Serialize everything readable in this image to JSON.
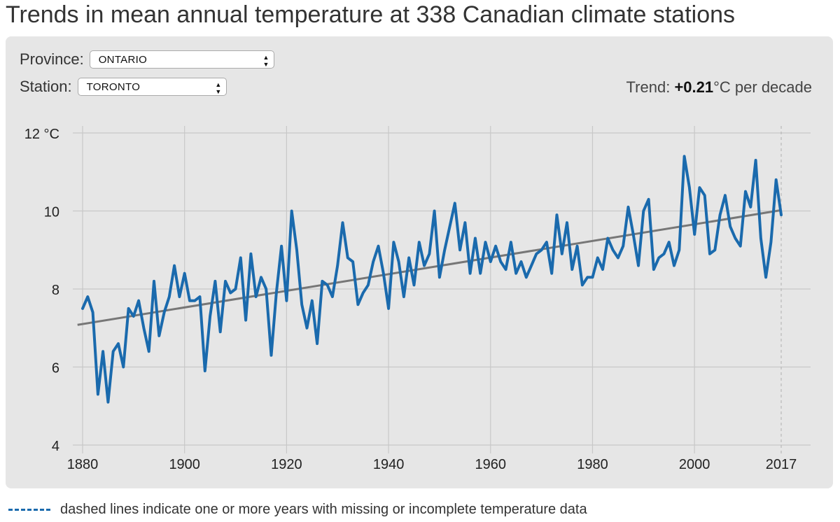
{
  "title": "Trends in mean annual temperature at 338 Canadian climate stations",
  "controls": {
    "province_label": "Province:",
    "province_value": "ONTARIO",
    "station_label": "Station:",
    "station_value": "TORONTO"
  },
  "trend": {
    "prefix": "Trend: ",
    "value": "+0.21",
    "suffix": "°C per decade"
  },
  "footnote": "dashed lines indicate one or more years with missing or incomplete temperature data",
  "colors": {
    "series": "#1a6aad",
    "trend": "#777777",
    "grid": "#c8c8c8",
    "panel": "#e6e6e6"
  },
  "chart_data": {
    "type": "line",
    "ylim": [
      4,
      12
    ],
    "xlim": [
      1880,
      2017
    ],
    "yticks": [
      4,
      6,
      8,
      10,
      12
    ],
    "ytick_labels": [
      "4",
      "6",
      "8",
      "10",
      "12 °C"
    ],
    "xticks": [
      1880,
      1900,
      1920,
      1940,
      1960,
      1980,
      2000,
      2017
    ],
    "xtick_labels": [
      "1880",
      "1900",
      "1920",
      "1940",
      "1960",
      "1980",
      "2000",
      "2017"
    ],
    "grid": true,
    "dashed_marker_year": 2017,
    "trend_line": {
      "x": [
        1879,
        2017
      ],
      "y": [
        7.08,
        10.02
      ]
    },
    "series": [
      {
        "x": [
          1880,
          1881,
          1882,
          1883,
          1884,
          1885,
          1886,
          1887,
          1888,
          1889,
          1890,
          1891,
          1892,
          1893,
          1894,
          1895,
          1896,
          1897,
          1898,
          1899,
          1900,
          1901,
          1902,
          1903,
          1904,
          1905,
          1906,
          1907,
          1908,
          1909,
          1910,
          1911,
          1912,
          1913,
          1914,
          1915,
          1916,
          1917,
          1918,
          1919,
          1920,
          1921,
          1922,
          1923,
          1924,
          1925,
          1926,
          1927,
          1928,
          1929,
          1930,
          1931,
          1932,
          1933,
          1934,
          1935,
          1936,
          1937,
          1938,
          1939,
          1940,
          1941,
          1942,
          1943,
          1944,
          1945,
          1946,
          1947,
          1948,
          1949,
          1950,
          1951,
          1952,
          1953,
          1954,
          1955,
          1956,
          1957,
          1958,
          1959,
          1960,
          1961,
          1962,
          1963,
          1964,
          1965,
          1966,
          1967,
          1968,
          1969,
          1970,
          1971,
          1972,
          1973,
          1974,
          1975,
          1976,
          1977,
          1978,
          1979,
          1980,
          1981,
          1982,
          1983,
          1984,
          1985,
          1986,
          1987,
          1988,
          1989,
          1990,
          1991,
          1992,
          1993,
          1994,
          1995,
          1996,
          1997,
          1998,
          1999,
          2000,
          2001,
          2002,
          2003,
          2004,
          2005,
          2006,
          2007,
          2008,
          2009,
          2010,
          2011,
          2012,
          2013,
          2014,
          2015,
          2016,
          2017
        ],
        "values": [
          7.5,
          7.8,
          7.4,
          5.3,
          6.4,
          5.1,
          6.4,
          6.6,
          6.0,
          7.5,
          7.3,
          7.7,
          7.0,
          6.4,
          8.2,
          6.8,
          7.4,
          7.8,
          8.6,
          7.8,
          8.4,
          7.7,
          7.7,
          7.8,
          5.9,
          7.3,
          8.2,
          6.9,
          8.2,
          7.9,
          8.0,
          8.8,
          7.2,
          8.9,
          7.8,
          8.3,
          8.0,
          6.3,
          7.9,
          9.1,
          7.7,
          10.0,
          9.0,
          7.6,
          7.0,
          7.7,
          6.6,
          8.2,
          8.1,
          7.8,
          8.6,
          9.7,
          8.8,
          8.7,
          7.6,
          7.9,
          8.1,
          8.7,
          9.1,
          8.4,
          7.5,
          9.2,
          8.7,
          7.8,
          8.8,
          8.1,
          9.2,
          8.6,
          8.9,
          10.0,
          8.3,
          9.0,
          9.6,
          10.2,
          9.0,
          9.7,
          8.4,
          9.3,
          8.4,
          9.2,
          8.7,
          9.1,
          8.7,
          8.5,
          9.2,
          8.4,
          8.7,
          8.3,
          8.6,
          8.9,
          9.0,
          9.2,
          8.4,
          9.9,
          8.9,
          9.7,
          8.5,
          9.1,
          8.1,
          8.3,
          8.3,
          8.8,
          8.5,
          9.3,
          9.0,
          8.8,
          9.1,
          10.1,
          9.4,
          8.6,
          10.0,
          10.3,
          8.5,
          8.8,
          8.9,
          9.2,
          8.6,
          9.0,
          11.4,
          10.6,
          9.4,
          10.6,
          10.4,
          8.9,
          9.0,
          9.9,
          10.4,
          9.6,
          9.3,
          9.1,
          10.5,
          10.1,
          11.3,
          9.3,
          8.3,
          9.2,
          10.8,
          9.9
        ]
      }
    ]
  }
}
